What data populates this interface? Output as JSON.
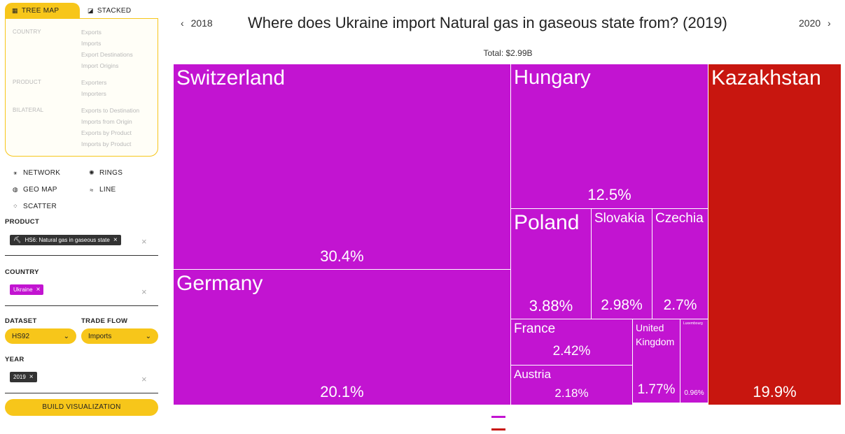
{
  "colors": {
    "accent": "#f7c61a",
    "europe": "#c214d1",
    "asia": "#c8160f",
    "product_chip": "#333333"
  },
  "tabs": [
    {
      "label": "TREE MAP",
      "icon": "treemap-icon"
    },
    {
      "label": "STACKED",
      "icon": "stacked-icon"
    }
  ],
  "menu": {
    "sections": [
      {
        "title": "COUNTRY",
        "items": [
          "Exports",
          "Imports",
          "Export Destinations",
          "Import Origins"
        ]
      },
      {
        "title": "PRODUCT",
        "items": [
          "Exporters",
          "Importers"
        ]
      },
      {
        "title": "BILATERAL",
        "items": [
          "Exports to Destination",
          "Imports from Origin",
          "Exports by Product",
          "Imports by Product"
        ]
      }
    ]
  },
  "viz_types": [
    {
      "label": "NETWORK",
      "icon": "network-icon"
    },
    {
      "label": "RINGS",
      "icon": "rings-icon"
    },
    {
      "label": "GEO MAP",
      "icon": "geo-map-icon"
    },
    {
      "label": "LINE",
      "icon": "line-icon"
    },
    {
      "label": "SCATTER",
      "icon": "scatter-icon"
    }
  ],
  "filters": {
    "product_label": "PRODUCT",
    "product_chip": "HS6: Natural gas in gaseous state",
    "country_label": "COUNTRY",
    "country_chip": "Ukraine",
    "dataset_label": "DATASET",
    "dataset_value": "HS92",
    "trade_flow_label": "TRADE FLOW",
    "trade_flow_value": "Imports",
    "year_label": "YEAR",
    "year_chip": "2019",
    "build_button": "BUILD VISUALIZATION"
  },
  "header": {
    "prev_year": "2018",
    "next_year": "2020",
    "title": "Where does Ukraine import Natural gas in gaseous state from? (2019)",
    "total": "Total: $2.99B"
  },
  "tiles": [
    {
      "name": "Switzerland",
      "pct": "30.4%",
      "region": "europe"
    },
    {
      "name": "Germany",
      "pct": "20.1%",
      "region": "europe"
    },
    {
      "name": "Hungary",
      "pct": "12.5%",
      "region": "europe"
    },
    {
      "name": "Poland",
      "pct": "3.88%",
      "region": "europe"
    },
    {
      "name": "Slovakia",
      "pct": "2.98%",
      "region": "europe"
    },
    {
      "name": "Czechia",
      "pct": "2.7%",
      "region": "europe"
    },
    {
      "name": "France",
      "pct": "2.42%",
      "region": "europe"
    },
    {
      "name": "Austria",
      "pct": "2.18%",
      "region": "europe"
    },
    {
      "name": "United Kingdom",
      "pct": "1.77%",
      "region": "europe"
    },
    {
      "name": "Luxembourg",
      "pct": "0.96%",
      "region": "europe"
    },
    {
      "name": "Kazakhstan",
      "pct": "19.9%",
      "region": "asia"
    }
  ]
}
